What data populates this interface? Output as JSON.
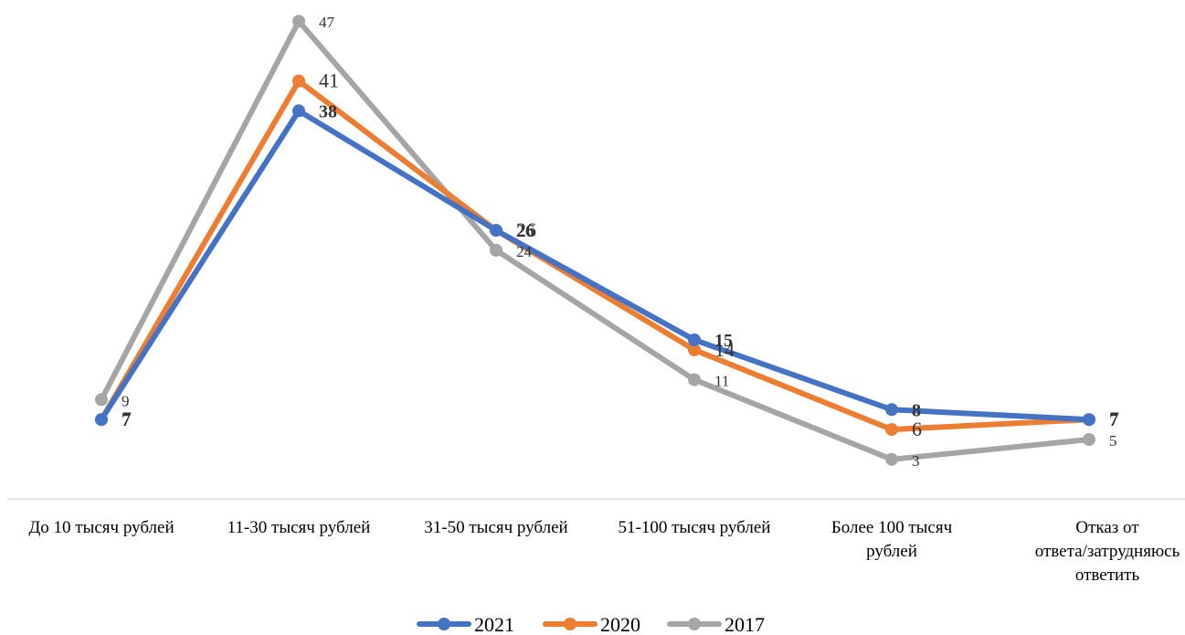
{
  "chart_data": {
    "type": "line",
    "categories": [
      [
        "До 10 тысяч рублей"
      ],
      [
        "11-30 тысяч рублей"
      ],
      [
        "31-50 тысяч рублей"
      ],
      [
        "51-100 тысяч рублей"
      ],
      [
        "Более 100 тысяч",
        "рублей"
      ],
      [
        "Отказ от",
        "ответа/затрудняюсь",
        "ответить"
      ]
    ],
    "series": [
      {
        "name": "2021",
        "color": "#4472C4",
        "values": [
          7,
          38,
          26,
          15,
          8,
          7
        ]
      },
      {
        "name": "2020",
        "color": "#ED7D31",
        "values": [
          7,
          41,
          26,
          14,
          6,
          7
        ]
      },
      {
        "name": "2017",
        "color": "#A5A5A5",
        "values": [
          9,
          47,
          24,
          11,
          3,
          5
        ]
      }
    ],
    "ylim": [
      0,
      50
    ],
    "grid": false,
    "legend": "bottom"
  }
}
